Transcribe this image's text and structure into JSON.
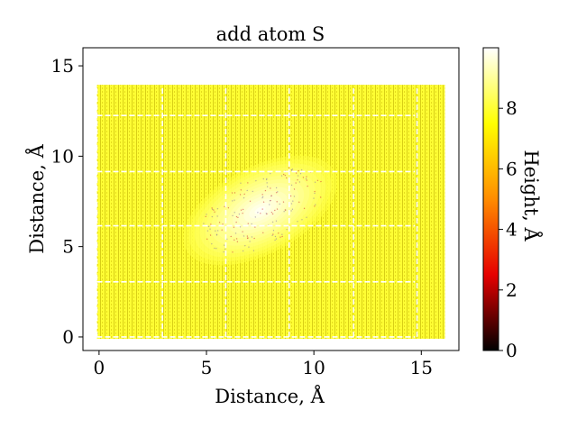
{
  "chart_data": {
    "type": "heatmap",
    "title": "add atom S",
    "xlabel": "Distance, Å",
    "ylabel": "Distance, Å",
    "colorbar_label": "Height, Å",
    "colormap": "hot",
    "colormap_stops": [
      "#000000",
      "#e60000",
      "#ff8c00",
      "#ffff00",
      "#ffffff"
    ],
    "xlim": [
      -0.75,
      16.75
    ],
    "ylim": [
      -0.75,
      16
    ],
    "clim": [
      0,
      10
    ],
    "xticks": [
      0,
      5,
      10,
      15
    ],
    "xtick_labels": [
      "0",
      "5",
      "10",
      "15"
    ],
    "yticks": [
      0,
      5,
      10,
      15
    ],
    "ytick_labels": [
      "0",
      "5",
      "10",
      "15"
    ],
    "colorbar_ticks": [
      0,
      2,
      4,
      6,
      8
    ],
    "colorbar_tick_labels": [
      "0",
      "2",
      "4",
      "6",
      "8"
    ],
    "surface_extent": {
      "x": [
        -0.1,
        16.1
      ],
      "y": [
        -0.1,
        13.95
      ]
    },
    "substrate_height": 8,
    "feature": {
      "center": [
        7.5,
        7.0
      ],
      "radius": [
        3.9,
        2.4
      ],
      "tilt_deg": 28,
      "peak_height": 10
    },
    "cell_grid_lines": {
      "x": [
        -0.1,
        2.95,
        5.9,
        8.85,
        11.85,
        14.8
      ],
      "y": [
        0,
        3.05,
        6.15,
        9.15,
        12.25
      ]
    },
    "grid_line_color": "#ffffff",
    "grid_line_style": "dashed"
  }
}
